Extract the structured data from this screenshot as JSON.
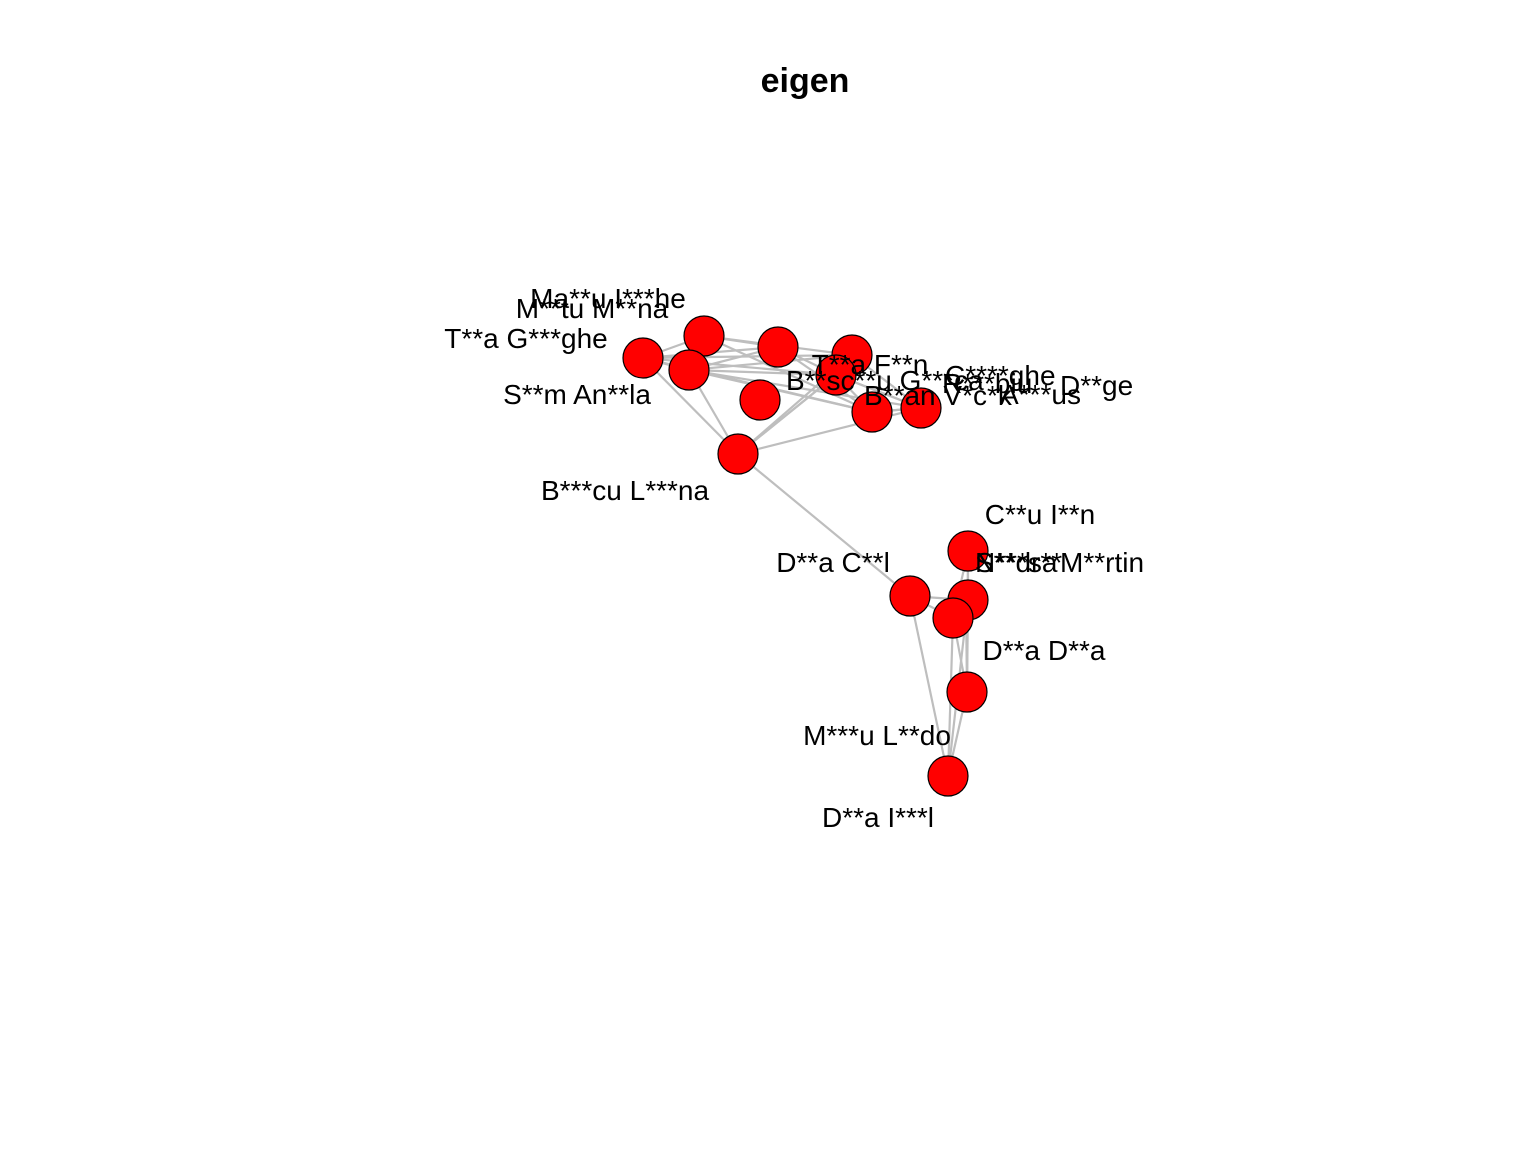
{
  "title": "eigen",
  "colors": {
    "node_fill": "#ff0000",
    "node_stroke": "#000000",
    "edge": "#bebebe"
  },
  "nodes": [
    {
      "id": "ma-ghe",
      "label": "Ma**u I***he"
    },
    {
      "id": "mtu-mna",
      "label": "M**tu M**na"
    },
    {
      "id": "tga",
      "label": "T**a G***ghe"
    },
    {
      "id": "smal",
      "label": "S**m An**la"
    },
    {
      "id": "n5",
      "label": ""
    },
    {
      "id": "n6",
      "label": ""
    },
    {
      "id": "n7",
      "label": ""
    },
    {
      "id": "tfn",
      "label": "T**a F**n"
    },
    {
      "id": "bsc",
      "label": "B**sc**u G***ca"
    },
    {
      "id": "cghe",
      "label": "C****ghe"
    },
    {
      "id": "rbiu",
      "label": "R***biu"
    },
    {
      "id": "dge",
      "label": "D**ge"
    },
    {
      "id": "bvck",
      "label": "B**an V*c*k"
    },
    {
      "id": "aus",
      "label": "A***us"
    },
    {
      "id": "blna",
      "label": "B***cu L***na"
    },
    {
      "id": "cin",
      "label": "C**u I**n"
    },
    {
      "id": "dca",
      "label": "D**a C**l"
    },
    {
      "id": "nsa",
      "label": "N***sa"
    },
    {
      "id": "sdr",
      "label": "S**dr**"
    },
    {
      "id": "mrt",
      "label": "M**rtin"
    },
    {
      "id": "ddd",
      "label": "D**a D**a"
    },
    {
      "id": "mldo",
      "label": "M***u L**do"
    },
    {
      "id": "dail",
      "label": "D**a I***l"
    }
  ],
  "edges": [
    [
      "tga",
      "ma-ghe"
    ],
    [
      "tga",
      "mtu-mna"
    ],
    [
      "tga",
      "n5"
    ],
    [
      "tga",
      "n6"
    ],
    [
      "tga",
      "tfn"
    ],
    [
      "tga",
      "blna"
    ],
    [
      "tga",
      "n7"
    ],
    [
      "ma-ghe",
      "mtu-mna"
    ],
    [
      "ma-ghe",
      "n5"
    ],
    [
      "ma-ghe",
      "tfn"
    ],
    [
      "ma-ghe",
      "n6"
    ],
    [
      "mtu-mna",
      "n5"
    ],
    [
      "mtu-mna",
      "n6"
    ],
    [
      "mtu-mna",
      "tfn"
    ],
    [
      "mtu-mna",
      "n7"
    ],
    [
      "mtu-mna",
      "blna"
    ],
    [
      "mtu-mna",
      "bsc"
    ],
    [
      "n5",
      "tfn"
    ],
    [
      "n5",
      "n7"
    ],
    [
      "n6",
      "n7"
    ],
    [
      "n6",
      "blna"
    ],
    [
      "n6",
      "bsc"
    ],
    [
      "tfn",
      "bsc"
    ],
    [
      "tfn",
      "n7"
    ],
    [
      "tfn",
      "rbiu"
    ],
    [
      "bsc",
      "n7"
    ],
    [
      "bsc",
      "rbiu"
    ],
    [
      "n7",
      "rbiu"
    ],
    [
      "n7",
      "blna"
    ],
    [
      "blna",
      "rbiu"
    ],
    [
      "blna",
      "n7"
    ],
    [
      "blna",
      "dca"
    ],
    [
      "dca",
      "sdr"
    ],
    [
      "dca",
      "nsa"
    ],
    [
      "dca",
      "dail"
    ],
    [
      "cin",
      "sdr"
    ],
    [
      "cin",
      "nsa"
    ],
    [
      "cin",
      "ddd"
    ],
    [
      "sdr",
      "nsa"
    ],
    [
      "sdr",
      "ddd"
    ],
    [
      "sdr",
      "dail"
    ],
    [
      "nsa",
      "ddd"
    ],
    [
      "nsa",
      "dail"
    ],
    [
      "ddd",
      "dail"
    ],
    [
      "mrt",
      "ddd"
    ]
  ]
}
